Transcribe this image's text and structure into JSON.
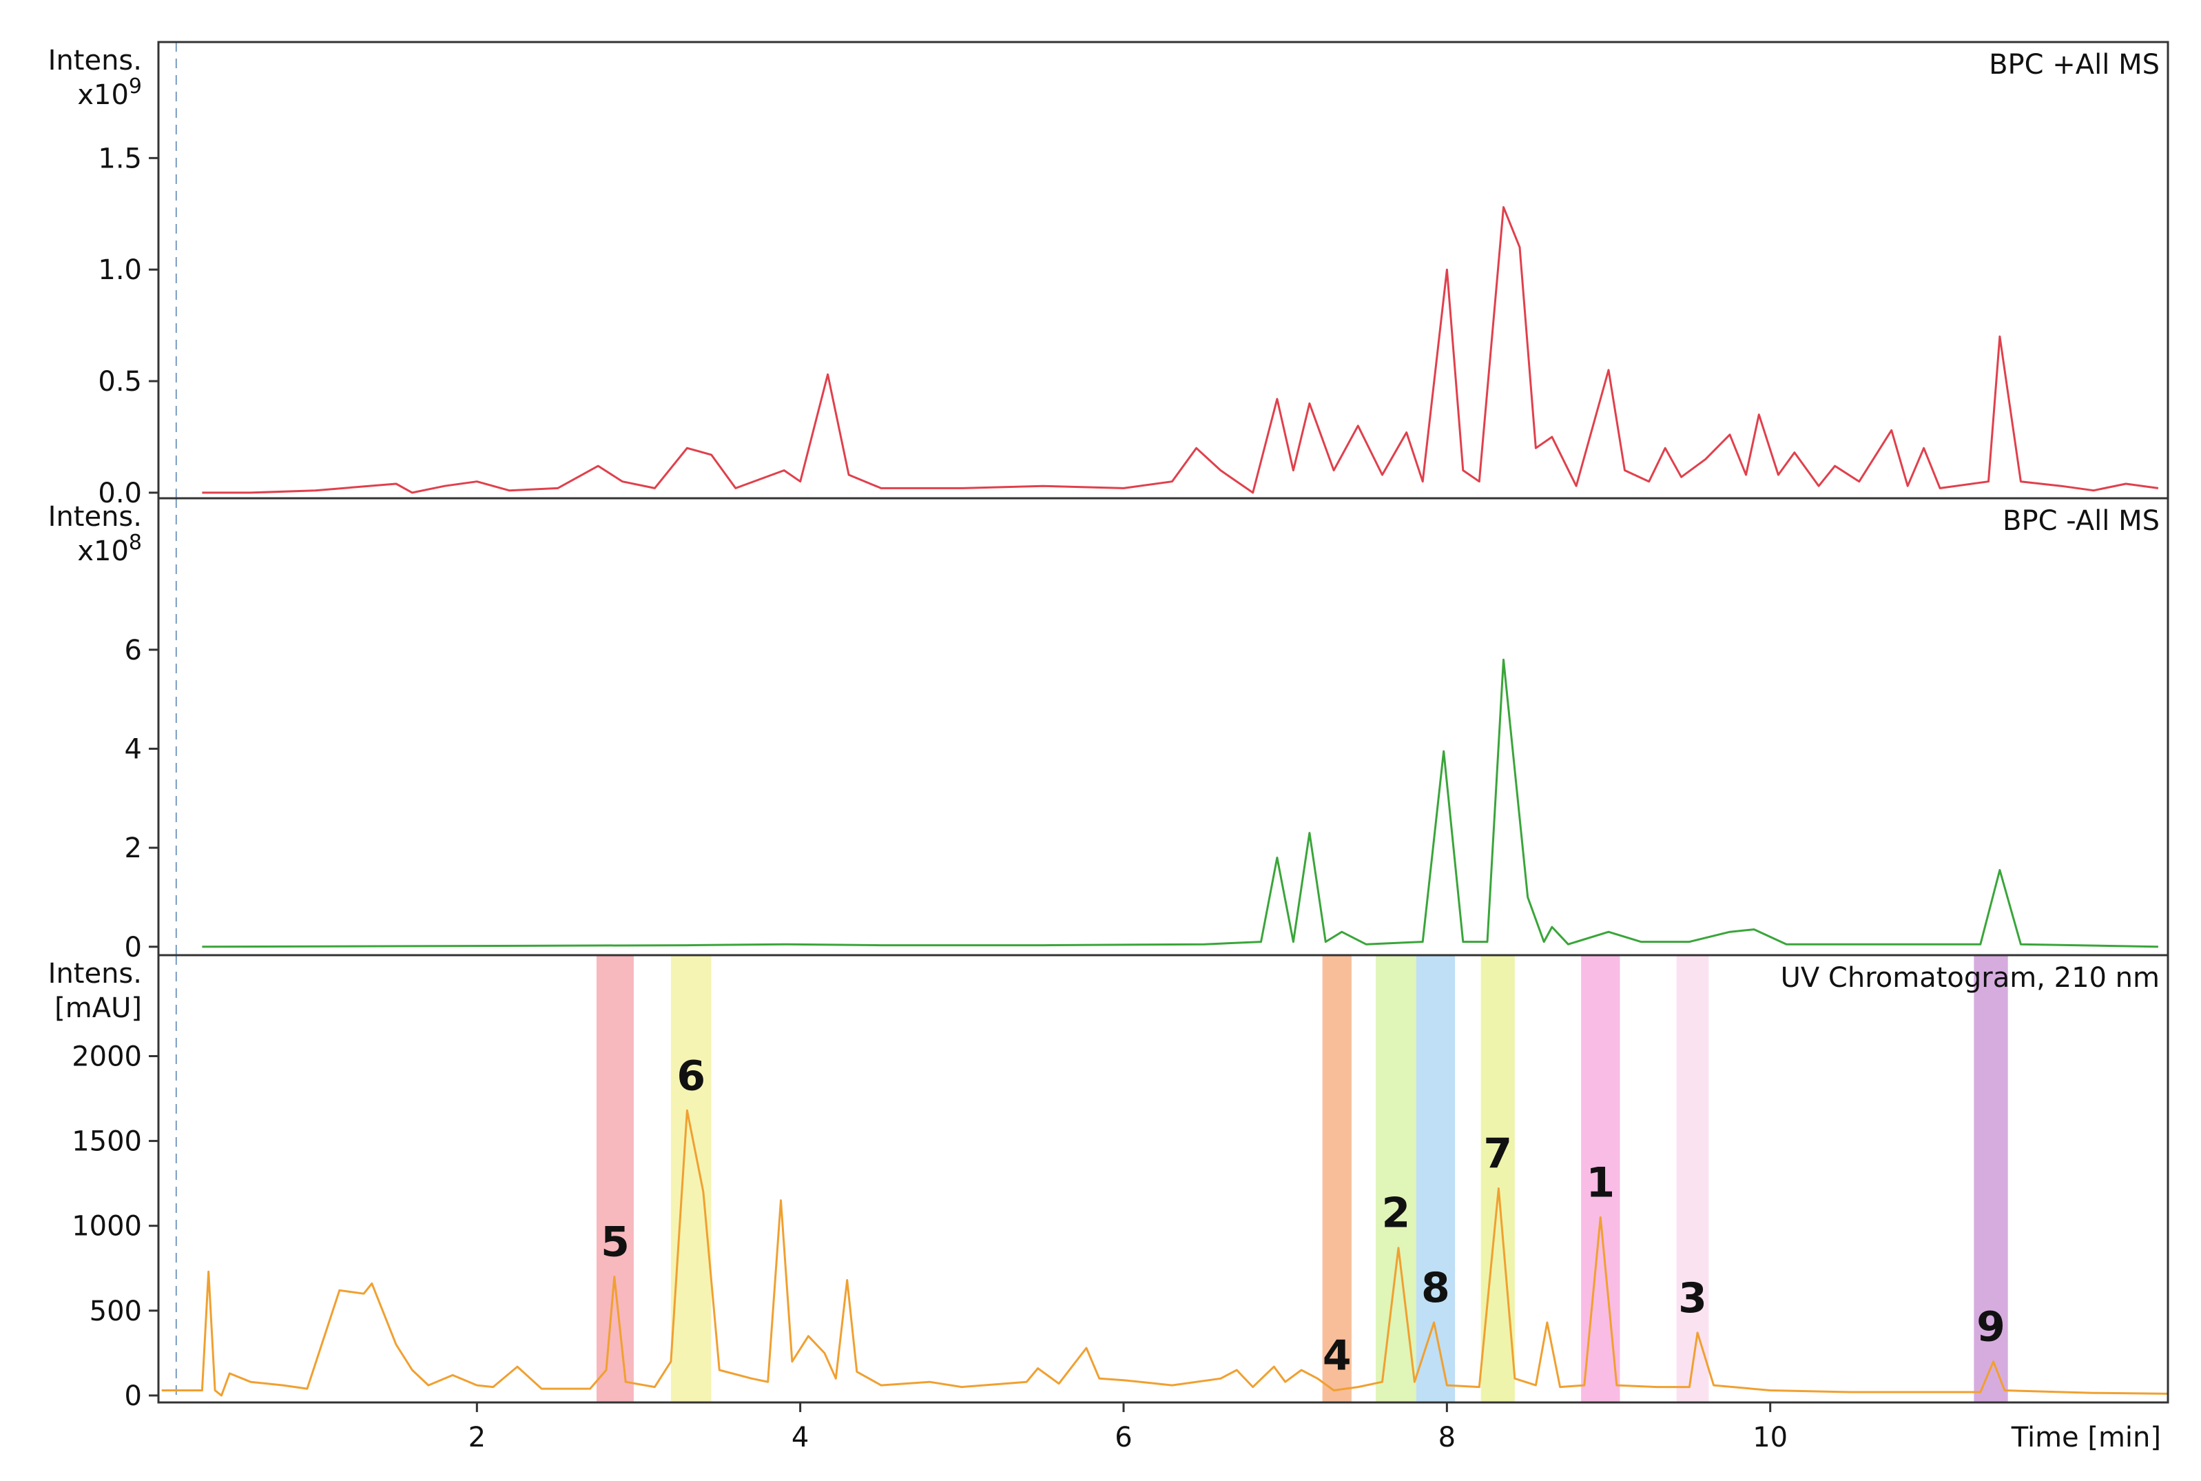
{
  "chart_data": [
    {
      "type": "line",
      "title": "BPC +All MS",
      "y_label": [
        "Intens.",
        "x10"
      ],
      "y_exponent": "9",
      "color": "#e0404c",
      "xlim": [
        0.03,
        12.46
      ],
      "ylim": [
        -0.025,
        2.02
      ],
      "injection_marker": 0.14,
      "yticks": [
        {
          "value": 0,
          "label": "0.0"
        },
        0.5,
        {
          "value": 1,
          "label": "1.0"
        },
        1.5
      ],
      "x": [
        0.3,
        0.6,
        1.0,
        1.5,
        1.6,
        1.8,
        2.0,
        2.2,
        2.5,
        2.75,
        2.9,
        3.1,
        3.3,
        3.45,
        3.6,
        3.9,
        4.0,
        4.17,
        4.3,
        4.5,
        5.0,
        5.5,
        6.0,
        6.3,
        6.45,
        6.6,
        6.8,
        6.95,
        7.05,
        7.15,
        7.3,
        7.45,
        7.6,
        7.75,
        7.85,
        8.0,
        8.1,
        8.2,
        8.35,
        8.45,
        8.55,
        8.65,
        8.8,
        9.0,
        9.1,
        9.25,
        9.35,
        9.45,
        9.6,
        9.75,
        9.85,
        9.93,
        10.05,
        10.15,
        10.3,
        10.4,
        10.55,
        10.75,
        10.85,
        10.95,
        11.05,
        11.35,
        11.42,
        11.55,
        11.8,
        12.0,
        12.2,
        12.4
      ],
      "values": [
        0,
        0,
        0.01,
        0.04,
        0,
        0.03,
        0.05,
        0.01,
        0.02,
        0.12,
        0.05,
        0.02,
        0.2,
        0.17,
        0.02,
        0.1,
        0.05,
        0.53,
        0.08,
        0.02,
        0.02,
        0.03,
        0.02,
        0.05,
        0.2,
        0.1,
        0,
        0.42,
        0.1,
        0.4,
        0.1,
        0.3,
        0.08,
        0.27,
        0.05,
        1.0,
        0.1,
        0.05,
        1.28,
        1.1,
        0.2,
        0.25,
        0.03,
        0.55,
        0.1,
        0.05,
        0.2,
        0.07,
        0.15,
        0.26,
        0.08,
        0.35,
        0.08,
        0.18,
        0.03,
        0.12,
        0.05,
        0.28,
        0.03,
        0.2,
        0.02,
        0.05,
        0.7,
        0.05,
        0.03,
        0.01,
        0.04,
        0.02
      ]
    },
    {
      "type": "line",
      "title": "BPC -All MS",
      "y_label": [
        "Intens.",
        "x10"
      ],
      "y_exponent": "8",
      "color": "#3aa53a",
      "xlim": [
        0.03,
        12.46
      ],
      "ylim": [
        -0.17,
        9.06
      ],
      "injection_marker": 0.14,
      "yticks": [
        0,
        2,
        4,
        6
      ],
      "x": [
        0.3,
        3.3,
        3.9,
        4.5,
        5.5,
        6.5,
        6.85,
        6.95,
        7.05,
        7.15,
        7.25,
        7.35,
        7.5,
        7.85,
        7.98,
        8.1,
        8.25,
        8.35,
        8.5,
        8.6,
        8.65,
        8.75,
        9.0,
        9.2,
        9.5,
        9.75,
        9.9,
        10.1,
        10.5,
        11.0,
        11.3,
        11.42,
        11.55,
        12.4
      ],
      "values": [
        0,
        0.03,
        0.05,
        0.03,
        0.03,
        0.05,
        0.1,
        1.8,
        0.1,
        2.3,
        0.1,
        0.3,
        0.05,
        0.1,
        3.95,
        0.1,
        0.1,
        5.8,
        1.0,
        0.1,
        0.4,
        0.05,
        0.3,
        0.1,
        0.1,
        0.3,
        0.35,
        0.05,
        0.05,
        0.05,
        0.05,
        1.55,
        0.05,
        0
      ]
    },
    {
      "type": "line",
      "title": "UV Chromatogram, 210 nm",
      "y_label": [
        "Intens.",
        "[mAU]"
      ],
      "color": "#f0a030",
      "xlim": [
        0.03,
        12.46
      ],
      "ylim": [
        -41,
        2595
      ],
      "injection_marker": 0.14,
      "yticks": [
        0,
        500,
        1000,
        1500,
        2000
      ],
      "xticks": [
        2,
        4,
        6,
        8,
        10
      ],
      "xlabel": "Time [min]",
      "x": [
        0.05,
        0.3,
        0.34,
        0.38,
        0.42,
        0.47,
        0.6,
        0.8,
        0.95,
        1.15,
        1.3,
        1.35,
        1.5,
        1.6,
        1.7,
        1.85,
        2.0,
        2.1,
        2.25,
        2.4,
        2.7,
        2.8,
        2.85,
        2.92,
        3.1,
        3.2,
        3.3,
        3.4,
        3.5,
        3.7,
        3.8,
        3.88,
        3.95,
        4.05,
        4.15,
        4.22,
        4.29,
        4.35,
        4.5,
        4.8,
        5.0,
        5.4,
        5.47,
        5.6,
        5.77,
        5.85,
        6.0,
        6.3,
        6.6,
        6.7,
        6.8,
        6.93,
        7.0,
        7.1,
        7.2,
        7.3,
        7.45,
        7.6,
        7.7,
        7.8,
        7.92,
        8.0,
        8.2,
        8.32,
        8.42,
        8.55,
        8.62,
        8.7,
        8.85,
        8.95,
        9.05,
        9.3,
        9.5,
        9.55,
        9.65,
        10.0,
        10.5,
        11.0,
        11.3,
        11.38,
        11.45,
        12.0,
        12.46
      ],
      "values": [
        30,
        30,
        730,
        30,
        0,
        130,
        80,
        60,
        40,
        620,
        600,
        660,
        300,
        150,
        60,
        120,
        60,
        50,
        170,
        40,
        40,
        150,
        700,
        80,
        50,
        200,
        1680,
        1200,
        150,
        100,
        80,
        1150,
        200,
        350,
        250,
        100,
        680,
        140,
        60,
        80,
        50,
        80,
        160,
        70,
        280,
        100,
        90,
        60,
        100,
        150,
        50,
        170,
        80,
        150,
        100,
        30,
        50,
        80,
        870,
        80,
        430,
        60,
        50,
        1220,
        100,
        60,
        430,
        50,
        60,
        1050,
        60,
        50,
        50,
        370,
        60,
        30,
        20,
        20,
        20,
        200,
        30,
        15,
        10
      ],
      "highlights": [
        {
          "label": "5",
          "x": [
            2.74,
            2.97
          ],
          "color": "#f4a0a8"
        },
        {
          "label": "6",
          "x": [
            3.2,
            3.45
          ],
          "color": "#f3f09a"
        },
        {
          "label": "4",
          "x": [
            7.23,
            7.41
          ],
          "color": "#f5a878"
        },
        {
          "label": "2",
          "x": [
            7.56,
            7.81
          ],
          "color": "#d5f2a0"
        },
        {
          "label": "8",
          "x": [
            7.81,
            8.05
          ],
          "color": "#a8d4f2"
        },
        {
          "label": "7",
          "x": [
            8.21,
            8.42
          ],
          "color": "#eaf090"
        },
        {
          "label": "1",
          "x": [
            8.83,
            9.07
          ],
          "color": "#f7a6dc"
        },
        {
          "label": "3",
          "x": [
            9.42,
            9.62
          ],
          "color": "#f9d8ec"
        },
        {
          "label": "9",
          "x": [
            11.26,
            11.47
          ],
          "color": "#c890d4"
        }
      ]
    }
  ]
}
